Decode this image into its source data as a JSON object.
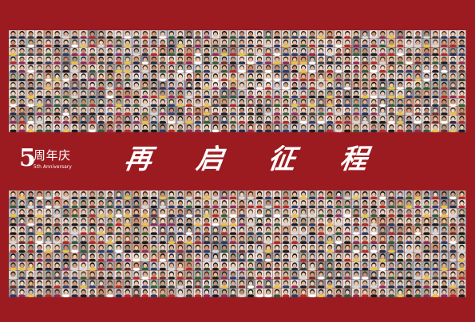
{
  "logo": {
    "number": "5",
    "chinese": "周年庆",
    "english": "5th Anniversary"
  },
  "slogan": {
    "chars": [
      "再",
      "启",
      "征",
      "程"
    ]
  },
  "colors": {
    "background": "#9b1b21",
    "text": "#ffffff"
  }
}
